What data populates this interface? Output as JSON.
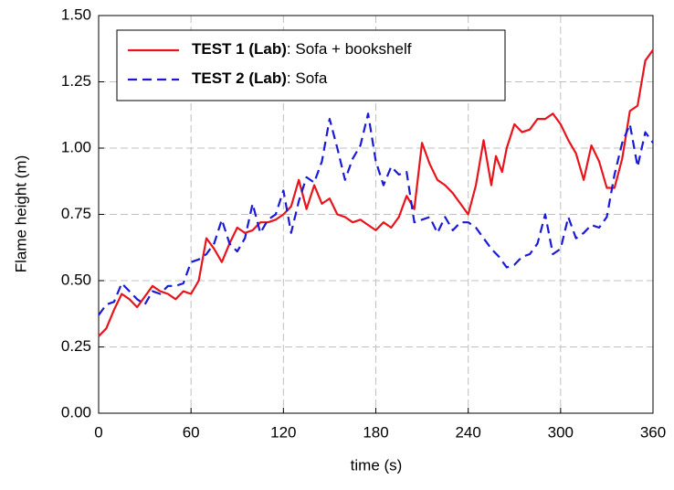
{
  "chart_data": {
    "type": "line",
    "x_label": "time (s)",
    "y_label": "Flame height (m)",
    "xlim": [
      0,
      360
    ],
    "xticks": [
      0,
      60,
      120,
      180,
      240,
      300,
      360
    ],
    "ylim": [
      0,
      1.5
    ],
    "yticks": [
      {
        "value": 0,
        "label": "0.00"
      },
      {
        "value": 0.25,
        "label": "0.25"
      },
      {
        "value": 0.5,
        "label": "0.50"
      },
      {
        "value": 0.75,
        "label": "0.75"
      },
      {
        "value": 1,
        "label": "1.00"
      },
      {
        "value": 1.25,
        "label": "1.25"
      },
      {
        "value": 1.5,
        "label": "1.50"
      }
    ],
    "grid": true,
    "legend": "upper left",
    "series": [
      {
        "name": "TEST 1 (Lab): Sofa + bookshelf",
        "color": "#e8141c",
        "dash": "solid",
        "x": [
          0,
          5,
          10,
          15,
          20,
          25,
          30,
          35,
          40,
          45,
          50,
          55,
          60,
          65,
          70,
          75,
          80,
          85,
          90,
          95,
          100,
          105,
          110,
          115,
          120,
          125,
          130,
          135,
          140,
          145,
          150,
          155,
          160,
          165,
          170,
          175,
          180,
          185,
          190,
          195,
          200,
          205,
          210,
          215,
          220,
          225,
          230,
          235,
          240,
          245,
          250,
          255,
          258,
          262,
          265,
          270,
          275,
          280,
          285,
          290,
          295,
          300,
          305,
          310,
          315,
          320,
          325,
          330,
          335,
          340,
          345,
          350,
          355,
          360
        ],
        "values": [
          0.29,
          0.32,
          0.39,
          0.45,
          0.43,
          0.4,
          0.44,
          0.48,
          0.46,
          0.45,
          0.43,
          0.46,
          0.45,
          0.5,
          0.66,
          0.62,
          0.57,
          0.64,
          0.7,
          0.68,
          0.69,
          0.72,
          0.72,
          0.73,
          0.75,
          0.78,
          0.88,
          0.77,
          0.86,
          0.79,
          0.81,
          0.75,
          0.74,
          0.72,
          0.73,
          0.71,
          0.69,
          0.72,
          0.7,
          0.74,
          0.82,
          0.77,
          1.02,
          0.94,
          0.88,
          0.86,
          0.83,
          0.79,
          0.75,
          0.86,
          1.03,
          0.86,
          0.97,
          0.91,
          1.0,
          1.09,
          1.06,
          1.07,
          1.11,
          1.11,
          1.13,
          1.09,
          1.03,
          0.98,
          0.88,
          1.01,
          0.95,
          0.85,
          0.85,
          0.96,
          1.14,
          1.16,
          1.33,
          1.37
        ]
      },
      {
        "name": "TEST 2 (Lab): Sofa",
        "color": "#1a1ad6",
        "dash": "dashed",
        "x": [
          0,
          5,
          10,
          15,
          20,
          25,
          30,
          35,
          40,
          45,
          50,
          55,
          60,
          65,
          70,
          75,
          80,
          85,
          90,
          95,
          100,
          105,
          110,
          115,
          120,
          125,
          130,
          135,
          140,
          145,
          150,
          155,
          160,
          165,
          170,
          175,
          180,
          185,
          190,
          195,
          200,
          205,
          210,
          215,
          220,
          225,
          230,
          235,
          240,
          245,
          250,
          255,
          260,
          265,
          270,
          275,
          280,
          285,
          290,
          295,
          300,
          305,
          310,
          315,
          320,
          325,
          330,
          335,
          340,
          345,
          350,
          355,
          360
        ],
        "values": [
          0.37,
          0.41,
          0.42,
          0.49,
          0.46,
          0.43,
          0.41,
          0.46,
          0.45,
          0.48,
          0.48,
          0.49,
          0.57,
          0.58,
          0.6,
          0.64,
          0.73,
          0.64,
          0.61,
          0.66,
          0.79,
          0.68,
          0.73,
          0.75,
          0.84,
          0.68,
          0.8,
          0.89,
          0.87,
          0.95,
          1.11,
          1.0,
          0.88,
          0.96,
          1.01,
          1.13,
          0.95,
          0.86,
          0.93,
          0.9,
          0.91,
          0.72,
          0.73,
          0.74,
          0.68,
          0.74,
          0.69,
          0.72,
          0.72,
          0.7,
          0.66,
          0.62,
          0.59,
          0.55,
          0.56,
          0.59,
          0.6,
          0.64,
          0.75,
          0.6,
          0.62,
          0.74,
          0.66,
          0.68,
          0.71,
          0.7,
          0.74,
          0.9,
          1.02,
          1.09,
          0.93,
          1.06,
          1.02
        ]
      }
    ]
  }
}
